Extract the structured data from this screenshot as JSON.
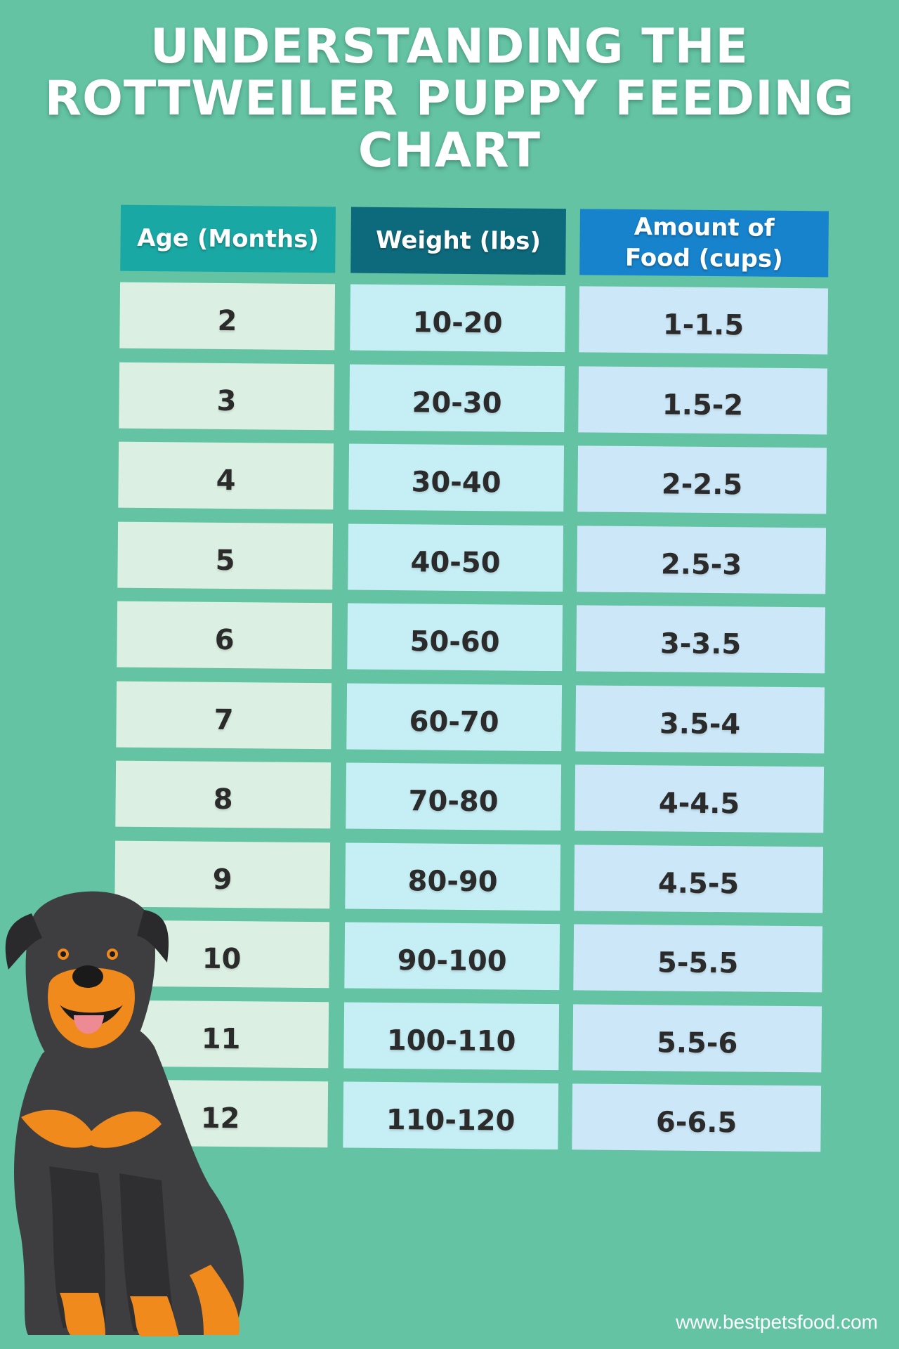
{
  "title": {
    "line1": "UNDERSTANDING THE",
    "line2": "ROTTWEILER PUPPY FEEDING",
    "line3": "CHART"
  },
  "table": {
    "headers": [
      "Age (Months)",
      "Weight (lbs)",
      "Amount of Food (cups)"
    ],
    "rows": [
      [
        "2",
        "10-20",
        "1-1.5"
      ],
      [
        "3",
        "20-30",
        "1.5-2"
      ],
      [
        "4",
        "30-40",
        "2-2.5"
      ],
      [
        "5",
        "40-50",
        "2.5-3"
      ],
      [
        "6",
        "50-60",
        "3-3.5"
      ],
      [
        "7",
        "60-70",
        "3.5-4"
      ],
      [
        "8",
        "70-80",
        "4-4.5"
      ],
      [
        "9",
        "80-90",
        "4.5-5"
      ],
      [
        "10",
        "90-100",
        "5-5.5"
      ],
      [
        "11",
        "100-110",
        "5.5-6"
      ],
      [
        "12",
        "110-120",
        "6-6.5"
      ]
    ]
  },
  "footer": {
    "website": "www.bestpetsfood.com"
  },
  "colors": {
    "background": "#63c3a3",
    "header_age": "#1aa8a4",
    "header_weight": "#0d6a7c",
    "header_food": "#1783cc",
    "cell_age": "#dbf0e3",
    "cell_weight": "#c6eef5",
    "cell_food": "#cce8f8"
  },
  "illustration": {
    "icon": "rottweiler-dog-illustration"
  }
}
